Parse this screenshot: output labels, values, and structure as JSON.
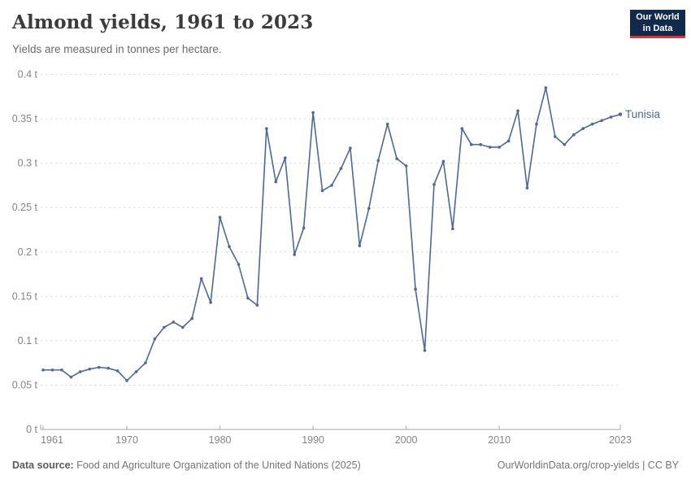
{
  "header": {
    "title": "Almond yields, 1961 to 2023",
    "subtitle": "Yields are measured in tonnes per hectare.",
    "logo": {
      "line1": "Our World",
      "line2": "in Data"
    }
  },
  "chart_data": {
    "type": "line",
    "title": "Almond yields, 1961 to 2023",
    "unit": "tonnes per hectare",
    "x": [
      1961,
      1962,
      1963,
      1964,
      1965,
      1966,
      1967,
      1968,
      1969,
      1970,
      1971,
      1972,
      1973,
      1974,
      1975,
      1976,
      1977,
      1978,
      1979,
      1980,
      1981,
      1982,
      1983,
      1984,
      1985,
      1986,
      1987,
      1988,
      1989,
      1990,
      1991,
      1992,
      1993,
      1994,
      1995,
      1996,
      1997,
      1998,
      1999,
      2000,
      2001,
      2002,
      2003,
      2004,
      2005,
      2006,
      2007,
      2008,
      2009,
      2010,
      2011,
      2012,
      2013,
      2014,
      2015,
      2016,
      2017,
      2018,
      2019,
      2020,
      2021,
      2022,
      2023
    ],
    "series": [
      {
        "name": "Tunisia",
        "color": "#4A69A0",
        "values": [
          0.067,
          0.067,
          0.067,
          0.059,
          0.065,
          0.068,
          0.07,
          0.069,
          0.066,
          0.055,
          0.065,
          0.075,
          0.102,
          0.115,
          0.121,
          0.115,
          0.125,
          0.17,
          0.143,
          0.239,
          0.206,
          0.186,
          0.148,
          0.14,
          0.339,
          0.279,
          0.306,
          0.197,
          0.227,
          0.357,
          0.269,
          0.275,
          0.294,
          0.317,
          0.207,
          0.249,
          0.303,
          0.344,
          0.305,
          0.297,
          0.158,
          0.089,
          0.276,
          0.302,
          0.226,
          0.339,
          0.321,
          0.321,
          0.318,
          0.318,
          0.325,
          0.359,
          0.272,
          0.344,
          0.385,
          0.33,
          0.321,
          0.332,
          0.339,
          0.344,
          0.348,
          0.352,
          0.355
        ]
      }
    ],
    "ylim": [
      0,
      0.4
    ],
    "xlim": [
      1961,
      2023
    ],
    "y_ticks": [
      {
        "value": 0,
        "label": "0 t"
      },
      {
        "value": 0.05,
        "label": "0.05 t"
      },
      {
        "value": 0.1,
        "label": "0.1 t"
      },
      {
        "value": 0.15,
        "label": "0.15 t"
      },
      {
        "value": 0.2,
        "label": "0.2 t"
      },
      {
        "value": 0.25,
        "label": "0.25 t"
      },
      {
        "value": 0.3,
        "label": "0.3 t"
      },
      {
        "value": 0.35,
        "label": "0.35 t"
      },
      {
        "value": 0.4,
        "label": "0.4 t"
      }
    ],
    "x_ticks": [
      {
        "value": 1961,
        "label": "1961"
      },
      {
        "value": 1970,
        "label": "1970"
      },
      {
        "value": 1980,
        "label": "1980"
      },
      {
        "value": 1990,
        "label": "1990"
      },
      {
        "value": 2000,
        "label": "2000"
      },
      {
        "value": 2010,
        "label": "2010"
      },
      {
        "value": 2023,
        "label": "2023"
      }
    ],
    "grid": "horizontal-dashed",
    "legend": "end-of-line-label"
  },
  "colors": {
    "line": "#4A69A0",
    "grid": "#dcdcdc",
    "axis": "#a5a5a5",
    "tick_label": "#858585",
    "entity_label": "#4A69A0"
  },
  "footer": {
    "datasource_label": "Data source:",
    "datasource_text": "Food and Agriculture Organization of the United Nations (2025)",
    "link_text": "OurWorldinData.org/crop-yields | CC BY"
  }
}
